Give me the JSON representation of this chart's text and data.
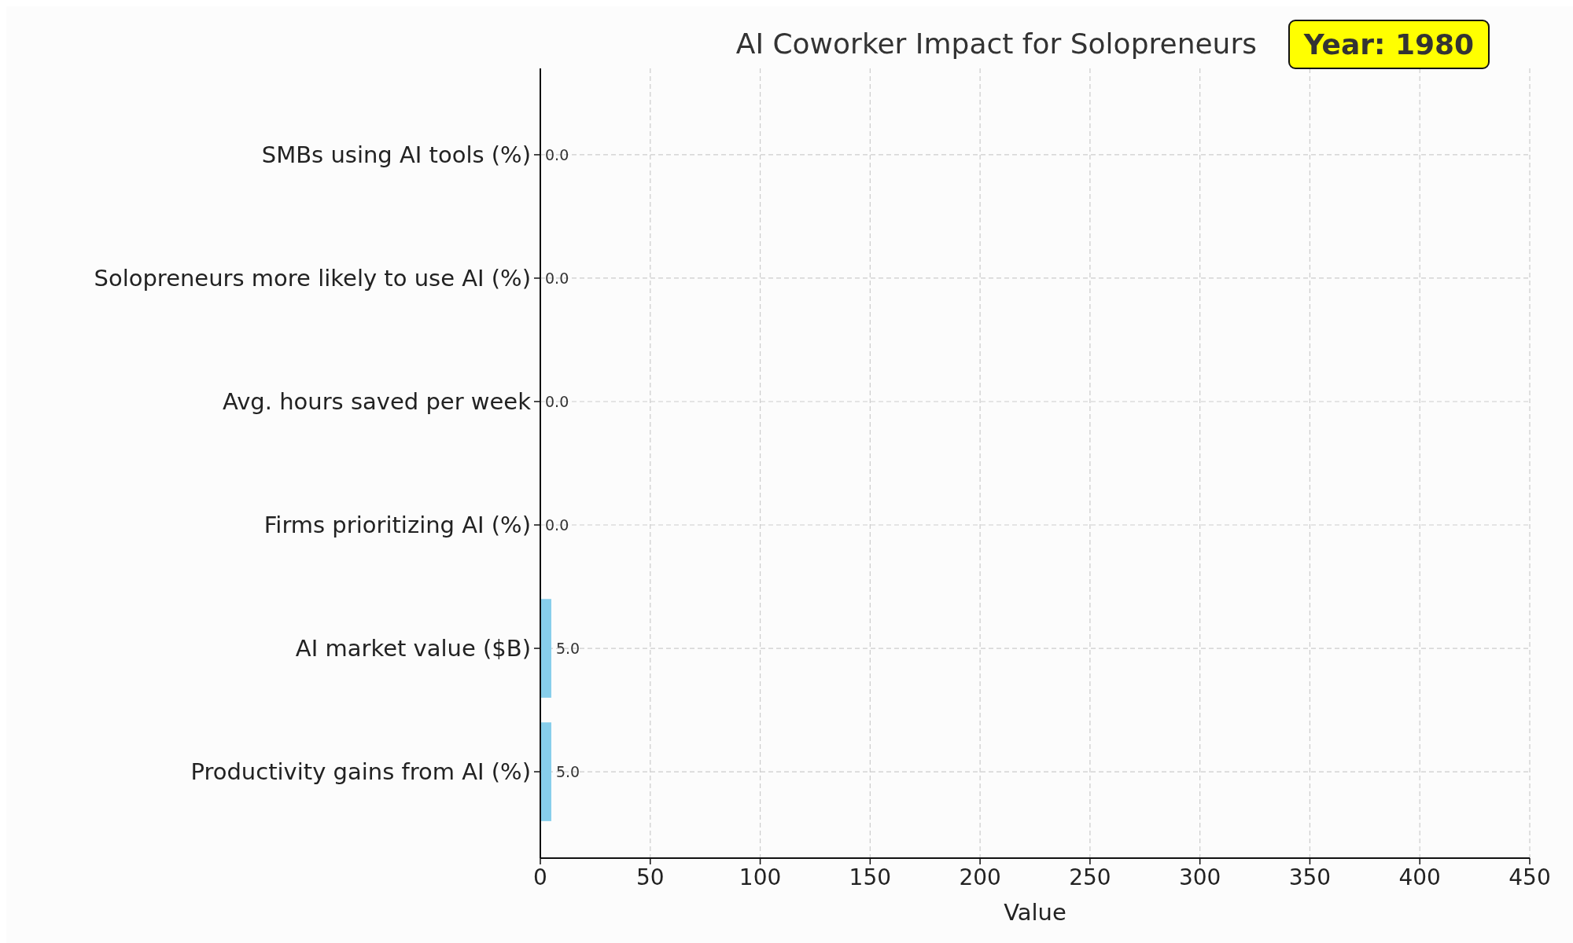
{
  "chart_data": {
    "type": "bar",
    "orientation": "horizontal",
    "title": "AI Coworker Impact for Solopreneurs",
    "xlabel": "Value",
    "categories": [
      "SMBs using AI tools (%)",
      "Solopreneurs more likely to use AI (%)",
      "Avg. hours saved per week",
      "Firms prioritizing AI (%)",
      "AI market value ($B)",
      "Productivity gains from AI (%)"
    ],
    "values": [
      0,
      0,
      0,
      0,
      5,
      5
    ],
    "value_labels": [
      "0.0",
      "0.0",
      "0.0",
      "0.0",
      "5.0",
      "5.0"
    ],
    "color": "#87ceeb",
    "xlim": [
      0,
      450
    ],
    "xticks": [
      0,
      50,
      100,
      150,
      200,
      250,
      300,
      350,
      400,
      450
    ],
    "grid": true,
    "annotations": [
      "Year: 1980"
    ]
  }
}
